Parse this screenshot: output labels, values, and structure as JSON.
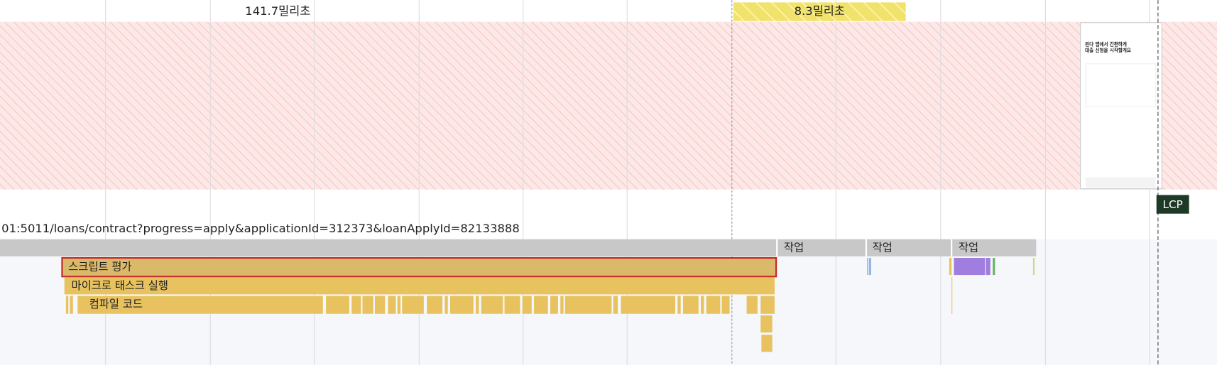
{
  "timeline": {
    "ranges": [
      "141.7밀리초",
      "8.3밀리초"
    ],
    "url": "01:5011/loans/contract?progress=apply&applicationId=312373&loanApplyId=82133888",
    "tasks": [
      "작업",
      "작업",
      "작업"
    ],
    "events": [
      "스크립트 평가",
      "마이크로 태스크 실행",
      "컴파일 코드"
    ],
    "marker": "LCP",
    "screenshot": {
      "heading": [
        "핀다 앱에서 간편하게",
        "대출 신청을 시작할게요"
      ]
    }
  }
}
